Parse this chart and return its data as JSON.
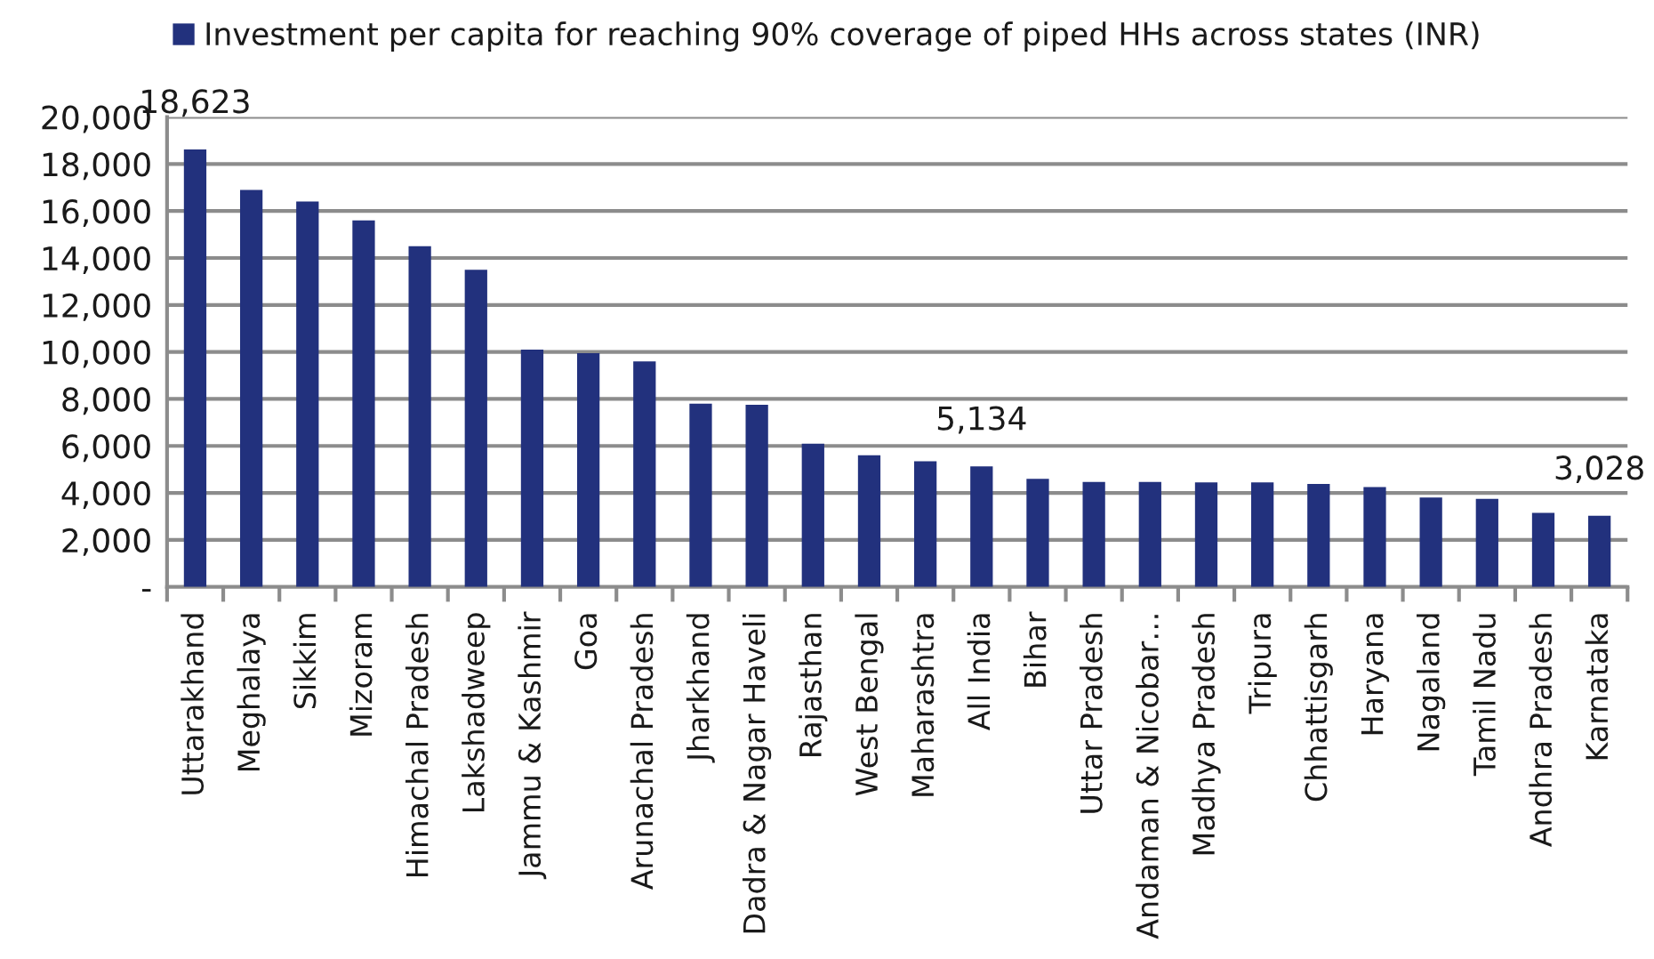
{
  "chart_data": {
    "type": "bar",
    "categories": [
      "Uttarakhand",
      "Meghalaya",
      "Sikkim",
      "Mizoram",
      "Himachal Pradesh",
      "Lakshadweep",
      "Jammu & Kashmir",
      "Goa",
      "Arunachal Pradesh",
      "Jharkhand",
      "Dadra & Nagar Haveli",
      "Rajasthan",
      "West Bengal",
      "Maharashtra",
      "All India",
      "Bihar",
      "Uttar Pradesh",
      "Andaman & Nicobar…",
      "Madhya Pradesh",
      "Tripura",
      "Chhattisgarh",
      "Haryana",
      "Nagaland",
      "Tamil Nadu",
      "Andhra Pradesh",
      "Karnataka"
    ],
    "series": [
      {
        "name": "Investment per capita for reaching 90% coverage of piped HHs across states (INR)",
        "color": "#22317d",
        "values": [
          18623,
          16900,
          16400,
          15600,
          14500,
          13500,
          10100,
          9950,
          9600,
          7800,
          7750,
          6100,
          5600,
          5350,
          5134,
          4600,
          4470,
          4470,
          4450,
          4450,
          4380,
          4250,
          3800,
          3750,
          3150,
          3028
        ],
        "value_labels": [
          "18,623",
          null,
          null,
          null,
          null,
          null,
          null,
          null,
          null,
          null,
          null,
          null,
          null,
          null,
          "5,134",
          null,
          null,
          null,
          null,
          null,
          null,
          null,
          null,
          null,
          null,
          "3,028"
        ]
      }
    ],
    "ylim": [
      0,
      20000
    ],
    "yticks": [
      {
        "value": 0,
        "label": "-"
      },
      {
        "value": 2000,
        "label": "2,000"
      },
      {
        "value": 4000,
        "label": "4,000"
      },
      {
        "value": 6000,
        "label": "6,000"
      },
      {
        "value": 8000,
        "label": "8,000"
      },
      {
        "value": 10000,
        "label": "10,000"
      },
      {
        "value": 12000,
        "label": "12,000"
      },
      {
        "value": 14000,
        "label": "14,000"
      },
      {
        "value": 16000,
        "label": "16,000"
      },
      {
        "value": 18000,
        "label": "18,000"
      },
      {
        "value": 20000,
        "label": "20,000"
      }
    ],
    "grid": "y",
    "legend": "top"
  }
}
